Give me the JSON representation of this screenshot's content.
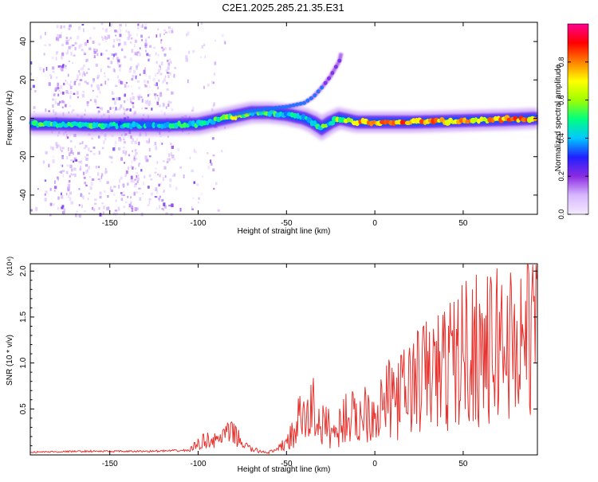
{
  "title": "C2E1.2025.285.21.35.E31",
  "chart_data": [
    {
      "type": "heatmap",
      "xlabel": "Height of straight line (km)",
      "ylabel": "Frequency (Hz)",
      "xlim": [
        -195,
        92
      ],
      "ylim": [
        -50,
        50
      ],
      "xticks": [
        -150,
        -100,
        -50,
        0,
        50
      ],
      "yticks": [
        -40,
        -20,
        0,
        20,
        40
      ],
      "ytick_labels": [
        "-40",
        "-20",
        "0",
        "20",
        "40"
      ],
      "colorbar": {
        "label": "Normalized spectral amplitude",
        "range": [
          0,
          1
        ],
        "ticks": [
          0.0,
          0.2,
          0.4,
          0.6,
          0.8
        ],
        "tick_labels": [
          "0.0",
          "0.2",
          "0.4",
          "0.6",
          "0.8"
        ],
        "colors": [
          "#f4eaff",
          "#d8b8ff",
          "#8a2be2",
          "#2020ff",
          "#00c8ff",
          "#00ff7f",
          "#a0ff00",
          "#ffff00",
          "#ff8000",
          "#ff0000",
          "#ff0090"
        ]
      },
      "ridge_x": [
        -195,
        -180,
        -160,
        -140,
        -120,
        -100,
        -90,
        -80,
        -70,
        -60,
        -50,
        -45,
        -40,
        -35,
        -30,
        -25,
        -20,
        -15,
        -10,
        0,
        20,
        40,
        60,
        80,
        92
      ],
      "ridge_y": [
        -3,
        -3,
        -3.5,
        -3.5,
        -3.5,
        -3,
        -1,
        1,
        3,
        3,
        2,
        1,
        0,
        -2,
        -5,
        -2,
        0,
        -1,
        -2,
        -2,
        -2,
        -1.5,
        -1,
        -0.5,
        0
      ],
      "ridge_amplitude": [
        0.45,
        0.5,
        0.45,
        0.4,
        0.45,
        0.45,
        0.5,
        0.6,
        0.5,
        0.45,
        0.45,
        0.4,
        0.45,
        0.45,
        0.5,
        0.45,
        0.6,
        0.6,
        0.75,
        0.75,
        0.8,
        0.75,
        0.7,
        0.8,
        0.7
      ],
      "branch_x": [
        -80,
        -70,
        -60,
        -50,
        -40,
        -35,
        -30,
        -25,
        -20,
        -19
      ],
      "branch_y": [
        2,
        4,
        5,
        6,
        8,
        11,
        16,
        22,
        30,
        34
      ]
    },
    {
      "type": "line",
      "xlabel": "Height of straight line (km)",
      "ylabel": "SNR (10 * v/v)",
      "multiplier_label": "(x10⁴)",
      "xlim": [
        -195,
        92
      ],
      "ylim": [
        0,
        20800
      ],
      "xticks": [
        -150,
        -100,
        -50,
        0,
        50
      ],
      "yticks": [
        5000,
        10000,
        15000,
        20000
      ],
      "ytick_labels": [
        "0.5",
        "1.0",
        "1.5",
        "2.0"
      ],
      "series": [
        {
          "color": "#e8322e",
          "x": [
            -195,
            -180,
            -160,
            -140,
            -120,
            -105,
            -100,
            -95,
            -90,
            -85,
            -80,
            -75,
            -70,
            -65,
            -60,
            -55,
            -50,
            -45,
            -42,
            -40,
            -38,
            -35,
            -32,
            -30,
            -28,
            -25,
            -22,
            -20,
            -15,
            -10,
            -5,
            0,
            5,
            10,
            15,
            20,
            25,
            30,
            35,
            40,
            45,
            50,
            55,
            60,
            65,
            70,
            75,
            80,
            85,
            88,
            90,
            92
          ],
          "y": [
            300,
            350,
            400,
            380,
            420,
            500,
            1200,
            1700,
            1500,
            2200,
            2400,
            1300,
            600,
            400,
            300,
            500,
            1500,
            2400,
            4500,
            3600,
            3800,
            5500,
            3500,
            3000,
            3400,
            2800,
            2200,
            3200,
            4500,
            3500,
            5200,
            4600,
            5600,
            6200,
            6500,
            7500,
            8200,
            8800,
            9000,
            9500,
            10200,
            11200,
            11500,
            12000,
            11000,
            12500,
            12400,
            11800,
            13200,
            16000,
            12500,
            14000
          ]
        }
      ]
    }
  ]
}
